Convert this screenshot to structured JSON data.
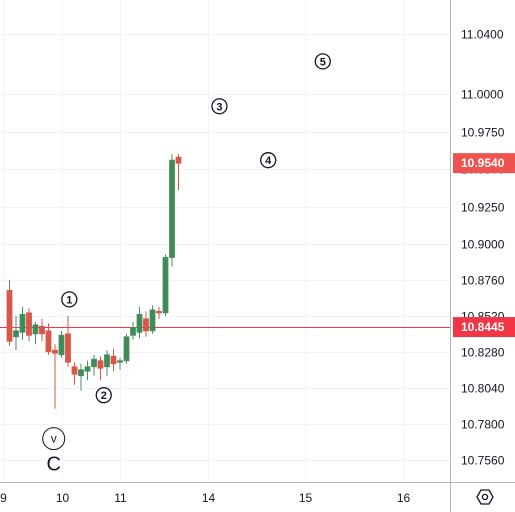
{
  "chart_data": {
    "type": "candlestick",
    "y_axis": {
      "position": "right",
      "range": [
        10.741,
        11.063
      ],
      "ticks": [
        "11.0400",
        "11.0000",
        "10.9750",
        "10.9500",
        "10.9250",
        "10.9000",
        "10.8760",
        "10.8520",
        "10.8280",
        "10.8040",
        "10.7800",
        "10.7560"
      ]
    },
    "x_axis": {
      "ticks": [
        {
          "label": "9",
          "x": 0
        },
        {
          "label": "10",
          "x": 9
        },
        {
          "label": "11",
          "x": 18
        },
        {
          "label": "14",
          "x": 31.5
        },
        {
          "label": "15",
          "x": 46.5
        },
        {
          "label": "16",
          "x": 61.5
        }
      ]
    },
    "price_lines": [
      {
        "value": 10.954,
        "label": "10.9540",
        "color": "#ef5350",
        "show_line": false
      },
      {
        "value": 10.8445,
        "label": "10.8445",
        "color": "#f23645",
        "show_line": true
      }
    ],
    "candles": [
      {
        "x": 1,
        "o": 10.869,
        "h": 10.876,
        "l": 10.832,
        "c": 10.835
      },
      {
        "x": 2,
        "o": 10.838,
        "h": 10.852,
        "l": 10.829,
        "c": 10.842
      },
      {
        "x": 3,
        "o": 10.841,
        "h": 10.858,
        "l": 10.836,
        "c": 10.853
      },
      {
        "x": 4,
        "o": 10.854,
        "h": 10.857,
        "l": 10.835,
        "c": 10.839
      },
      {
        "x": 5,
        "o": 10.84,
        "h": 10.848,
        "l": 10.833,
        "c": 10.846
      },
      {
        "x": 6,
        "o": 10.845,
        "h": 10.85,
        "l": 10.835,
        "c": 10.84
      },
      {
        "x": 7,
        "o": 10.842,
        "h": 10.847,
        "l": 10.826,
        "c": 10.828
      },
      {
        "x": 8,
        "o": 10.829,
        "h": 10.833,
        "l": 10.79,
        "c": 10.827
      },
      {
        "x": 9,
        "o": 10.826,
        "h": 10.842,
        "l": 10.824,
        "c": 10.839
      },
      {
        "x": 10,
        "o": 10.84,
        "h": 10.852,
        "l": 10.818,
        "c": 10.821
      },
      {
        "x": 11,
        "o": 10.818,
        "h": 10.821,
        "l": 10.806,
        "c": 10.813
      },
      {
        "x": 12,
        "o": 10.812,
        "h": 10.82,
        "l": 10.802,
        "c": 10.816
      },
      {
        "x": 13,
        "o": 10.815,
        "h": 10.822,
        "l": 10.809,
        "c": 10.818
      },
      {
        "x": 14,
        "o": 10.818,
        "h": 10.826,
        "l": 10.812,
        "c": 10.823
      },
      {
        "x": 15,
        "o": 10.822,
        "h": 10.825,
        "l": 10.809,
        "c": 10.817
      },
      {
        "x": 16,
        "o": 10.818,
        "h": 10.829,
        "l": 10.812,
        "c": 10.826
      },
      {
        "x": 17,
        "o": 10.825,
        "h": 10.83,
        "l": 10.815,
        "c": 10.82
      },
      {
        "x": 18,
        "o": 10.821,
        "h": 10.824,
        "l": 10.816,
        "c": 10.822
      },
      {
        "x": 19,
        "o": 10.822,
        "h": 10.84,
        "l": 10.82,
        "c": 10.838
      },
      {
        "x": 20,
        "o": 10.839,
        "h": 10.848,
        "l": 10.836,
        "c": 10.844
      },
      {
        "x": 21,
        "o": 10.841,
        "h": 10.858,
        "l": 10.837,
        "c": 10.853
      },
      {
        "x": 22,
        "o": 10.85,
        "h": 10.855,
        "l": 10.838,
        "c": 10.842
      },
      {
        "x": 23,
        "o": 10.842,
        "h": 10.859,
        "l": 10.84,
        "c": 10.856
      },
      {
        "x": 24,
        "o": 10.855,
        "h": 10.858,
        "l": 10.85,
        "c": 10.854
      },
      {
        "x": 25,
        "o": 10.854,
        "h": 10.893,
        "l": 10.852,
        "c": 10.891
      },
      {
        "x": 26,
        "o": 10.891,
        "h": 10.96,
        "l": 10.885,
        "c": 10.956
      },
      {
        "x": 27,
        "o": 10.958,
        "h": 10.96,
        "l": 10.936,
        "c": 10.954
      }
    ],
    "colors": {
      "up": "#4a8f5f",
      "up_fill": "#3f8a59",
      "down": "#d9564a",
      "down_fill": "#d9564a"
    },
    "annotations": [
      {
        "label": "1",
        "x": 10.2,
        "y": 10.863
      },
      {
        "label": "2",
        "x": 15.5,
        "y": 10.799
      },
      {
        "label": "3",
        "x": 33.3,
        "y": 10.992
      },
      {
        "label": "4",
        "x": 40.8,
        "y": 10.956
      },
      {
        "label": "5",
        "x": 49.2,
        "y": 11.022
      },
      {
        "label": "v",
        "x": 7.8,
        "y": 10.77
      },
      {
        "label": "C",
        "x": 7.8,
        "y": 10.754,
        "style": "large"
      }
    ],
    "settings_icon": "gear-hexagon-icon"
  }
}
